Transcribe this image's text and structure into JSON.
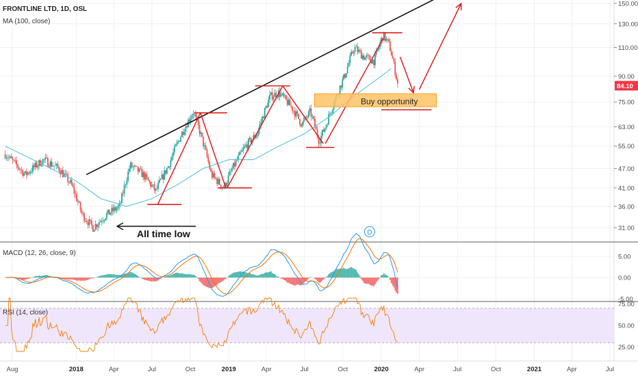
{
  "panes": {
    "price": {
      "title": "FRONTLINE LTD, 1D, OSL",
      "indicator": "MA (100, close)",
      "ticks": [
        150,
        130,
        110,
        90,
        75,
        63,
        55,
        47,
        41,
        36,
        31
      ],
      "tick_labels": [
        "150.00",
        "130.00",
        "110.00",
        "90.00",
        "75.00",
        "63.00",
        "55.00",
        "47.00",
        "41.00",
        "36.00",
        "31.00"
      ],
      "last_price": "84.10",
      "annotations": {
        "all_time_low": "All time low",
        "buy_opportunity": "Buy opportunity",
        "event_marker": "D"
      }
    },
    "macd": {
      "title": "MACD (12, 26, close, 9)",
      "ticks": [
        5,
        0,
        -5
      ],
      "tick_labels": [
        "5.00",
        "0.00",
        "-5.00"
      ]
    },
    "rsi": {
      "title": "RSI (14, close)",
      "ticks": [
        75,
        50,
        25
      ],
      "tick_labels": [
        "75.00",
        "50.00",
        "25.00"
      ]
    }
  },
  "time_axis": {
    "labels": [
      "Aug",
      "2018",
      "Apr",
      "Jul",
      "Oct",
      "2019",
      "Apr",
      "Jul",
      "Oct",
      "2020",
      "Apr",
      "Jul",
      "Oct",
      "2021",
      "Apr",
      "Jul"
    ],
    "bold": [
      false,
      true,
      false,
      false,
      false,
      true,
      false,
      false,
      false,
      true,
      false,
      false,
      false,
      true,
      false,
      false
    ]
  },
  "colors": {
    "up": "#26a69a",
    "down": "#ef5350",
    "ma": "#5bc3d6",
    "macd_line": "#2196f3",
    "signal_line": "#ff6d00",
    "rsi_line": "#f57c00",
    "rsi_band": "#f0e6fb",
    "drawing_red": "#e01c1c",
    "buy_zone": "#ffc266",
    "price_badge": "#f23645"
  },
  "chart_data": {
    "type": "line",
    "series": [
      {
        "name": "FRONTLINE LTD, 1D, OSL",
        "x": [
          "2017-07-15",
          "2017-09-01",
          "2017-10-15",
          "2017-11-20",
          "2017-12-20",
          "2018-01-15",
          "2018-02-10",
          "2018-03-15",
          "2018-04-15",
          "2018-05-10",
          "2018-06-10",
          "2018-07-10",
          "2018-08-10",
          "2018-09-10",
          "2018-10-08",
          "2018-10-25",
          "2018-11-20",
          "2018-12-20",
          "2019-01-10",
          "2019-02-10",
          "2019-03-10",
          "2019-04-10",
          "2019-05-01",
          "2019-06-01",
          "2019-06-25",
          "2019-07-15",
          "2019-08-05",
          "2019-08-20",
          "2019-09-10",
          "2019-10-05",
          "2019-10-28",
          "2019-11-20",
          "2019-12-15",
          "2020-01-05",
          "2020-01-20",
          "2020-02-10"
        ],
        "values": [
          52,
          45,
          50,
          47,
          42,
          34,
          31,
          34,
          36,
          48,
          45,
          40,
          48,
          60,
          70,
          60,
          45,
          41,
          47,
          55,
          60,
          78,
          80,
          72,
          64,
          70,
          57,
          63,
          75,
          90,
          110,
          103,
          100,
          120,
          112,
          84
        ]
      },
      {
        "name": "MA (100, close)",
        "x": [
          "2017-07-15",
          "2017-11-01",
          "2018-01-01",
          "2018-03-01",
          "2018-05-01",
          "2018-07-01",
          "2018-09-01",
          "2018-11-01",
          "2019-01-01",
          "2019-03-01",
          "2019-05-01",
          "2019-07-01",
          "2019-09-01",
          "2019-11-01",
          "2020-01-01",
          "2020-01-25"
        ],
        "values": [
          55,
          47,
          43,
          38,
          36,
          38,
          42,
          47,
          50,
          50,
          55,
          60,
          68,
          79,
          90,
          95
        ]
      }
    ],
    "yscale": "log",
    "ylim": [
      29,
      152
    ]
  }
}
